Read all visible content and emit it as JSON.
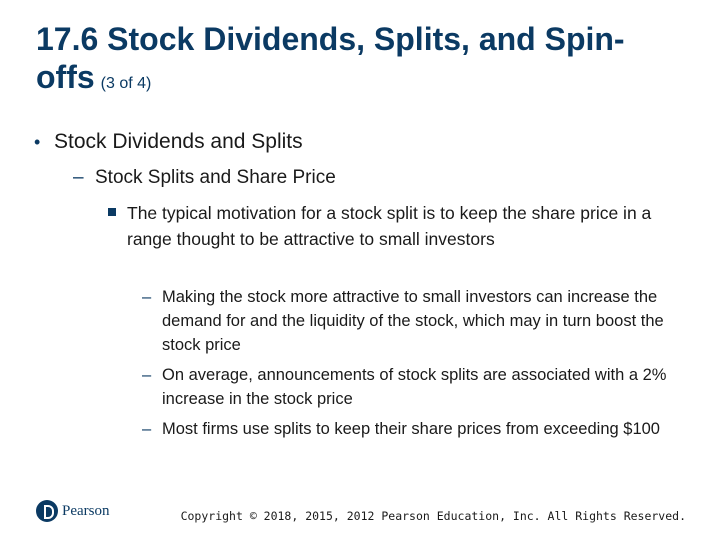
{
  "slide": {
    "title": "17.6 Stock Dividends, Splits, and Spin-offs",
    "title_suffix": "(3 of 4)",
    "level1": "Stock Dividends and Splits",
    "level2": "Stock Splits and Share Price",
    "level3": "The typical motivation for a stock split is to keep the share price in a range thought to be attractive to small investors",
    "level4": [
      "Making the stock more attractive to small investors can increase the demand for and the liquidity of the stock, which may in turn boost the stock price",
      "On average, announcements of stock splits are associated with a 2% increase in the stock price",
      "Most firms use splits to keep their share prices from exceeding $100"
    ]
  },
  "footer": {
    "logo_text": "Pearson",
    "copyright": "Copyright © 2018, 2015, 2012 Pearson Education, Inc. All Rights Reserved."
  },
  "colors": {
    "title": "#0b3a63",
    "bullet": "#0b3a63"
  }
}
